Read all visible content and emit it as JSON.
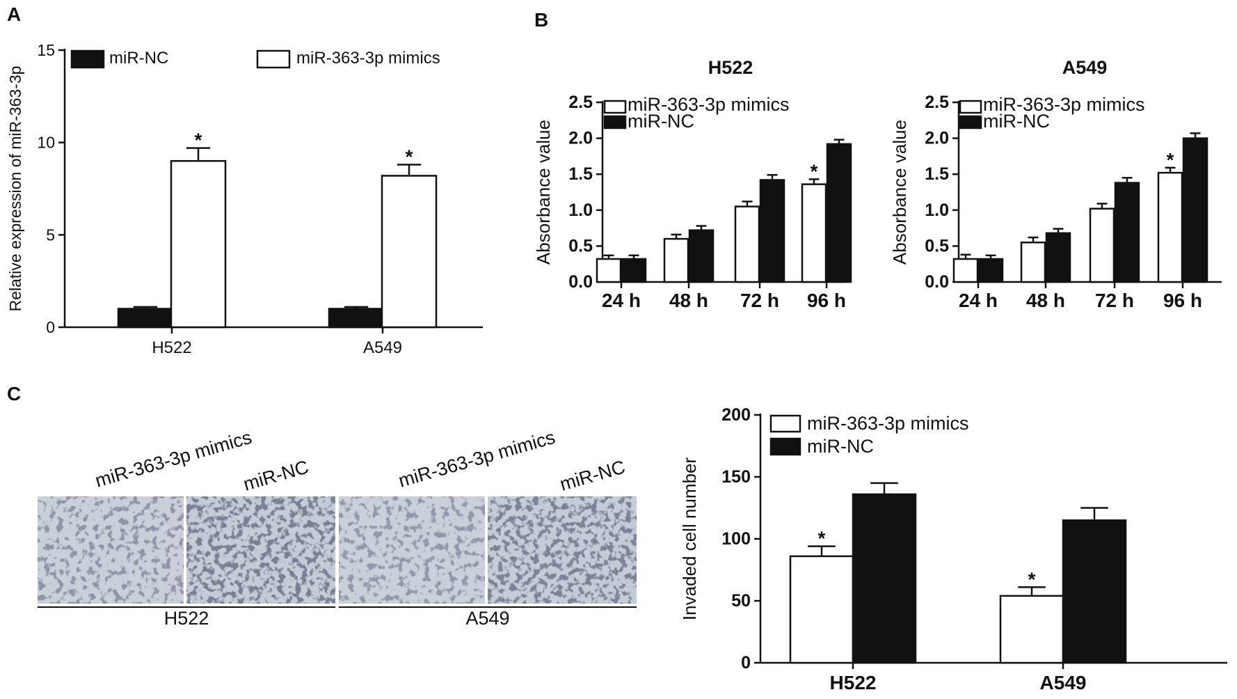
{
  "panels": {
    "a": "A",
    "b": "B",
    "c": "C"
  },
  "colors": {
    "mimics": "#ffffff",
    "nc": "#111111",
    "stroke": "#111111"
  },
  "chart_data": [
    {
      "id": "A",
      "type": "bar",
      "ylabel": "Relative expression of miR-363-3p",
      "xlabel": "",
      "ylim": [
        0,
        15
      ],
      "yticks": [
        0,
        5,
        10,
        15
      ],
      "categories": [
        "H522",
        "A549"
      ],
      "series": [
        {
          "name": "miR-NC",
          "color": "#111111",
          "values": [
            1.0,
            1.0
          ],
          "errors": [
            0.1,
            0.1
          ]
        },
        {
          "name": "miR-363-3p mimics",
          "color": "#ffffff",
          "values": [
            9.0,
            8.2
          ],
          "errors": [
            0.7,
            0.6
          ]
        }
      ],
      "significance": [
        {
          "series": 1,
          "category": 0,
          "mark": "*"
        },
        {
          "series": 1,
          "category": 1,
          "mark": "*"
        }
      ],
      "legend_placement": "top"
    },
    {
      "id": "B1",
      "type": "bar",
      "title": "H522",
      "ylabel": "Absorbance value",
      "xlabel": "",
      "ylim": [
        0,
        2.5
      ],
      "yticks": [
        "0.0",
        "0.5",
        "1.0",
        "1.5",
        "2.0",
        "2.5"
      ],
      "categories": [
        "24 h",
        "48 h",
        "72 h",
        "96 h"
      ],
      "series": [
        {
          "name": "miR-363-3p mimics",
          "color": "#ffffff",
          "values": [
            0.32,
            0.6,
            1.05,
            1.36
          ],
          "errors": [
            0.05,
            0.06,
            0.07,
            0.07
          ]
        },
        {
          "name": "miR-NC",
          "color": "#111111",
          "values": [
            0.32,
            0.72,
            1.42,
            1.92
          ],
          "errors": [
            0.05,
            0.06,
            0.07,
            0.06
          ]
        }
      ],
      "significance": [
        {
          "series": 0,
          "category": 3,
          "mark": "*"
        }
      ],
      "legend_placement": "top-left"
    },
    {
      "id": "B2",
      "type": "bar",
      "title": "A549",
      "ylabel": "Absorbance value",
      "xlabel": "",
      "ylim": [
        0,
        2.5
      ],
      "yticks": [
        "0.0",
        "0.5",
        "1.0",
        "1.5",
        "2.0",
        "2.5"
      ],
      "categories": [
        "24 h",
        "48 h",
        "72 h",
        "96 h"
      ],
      "series": [
        {
          "name": "miR-363-3p mimics",
          "color": "#ffffff",
          "values": [
            0.32,
            0.55,
            1.02,
            1.52
          ],
          "errors": [
            0.06,
            0.07,
            0.07,
            0.07
          ]
        },
        {
          "name": "miR-NC",
          "color": "#111111",
          "values": [
            0.32,
            0.68,
            1.38,
            2.0
          ],
          "errors": [
            0.05,
            0.06,
            0.07,
            0.07
          ]
        }
      ],
      "significance": [
        {
          "series": 0,
          "category": 3,
          "mark": "*"
        }
      ],
      "legend_placement": "top-left"
    },
    {
      "id": "C",
      "type": "bar",
      "ylabel": "Invaded cell number",
      "xlabel": "",
      "ylim": [
        0,
        200
      ],
      "yticks": [
        0,
        50,
        100,
        150,
        200
      ],
      "categories": [
        "H522",
        "A549"
      ],
      "series": [
        {
          "name": "miR-363-3p mimics",
          "color": "#ffffff",
          "values": [
            86,
            54
          ],
          "errors": [
            8,
            7
          ]
        },
        {
          "name": "miR-NC",
          "color": "#111111",
          "values": [
            136,
            115
          ],
          "errors": [
            9,
            10
          ]
        }
      ],
      "significance": [
        {
          "series": 0,
          "category": 0,
          "mark": "*"
        },
        {
          "series": 0,
          "category": 1,
          "mark": "*"
        }
      ],
      "legend_placement": "top-left"
    }
  ],
  "micrographs": {
    "column_labels": [
      "miR-363-3p mimics",
      "miR-NC",
      "miR-363-3p mimics",
      "miR-NC"
    ],
    "group_labels": [
      "H522",
      "A549"
    ]
  }
}
